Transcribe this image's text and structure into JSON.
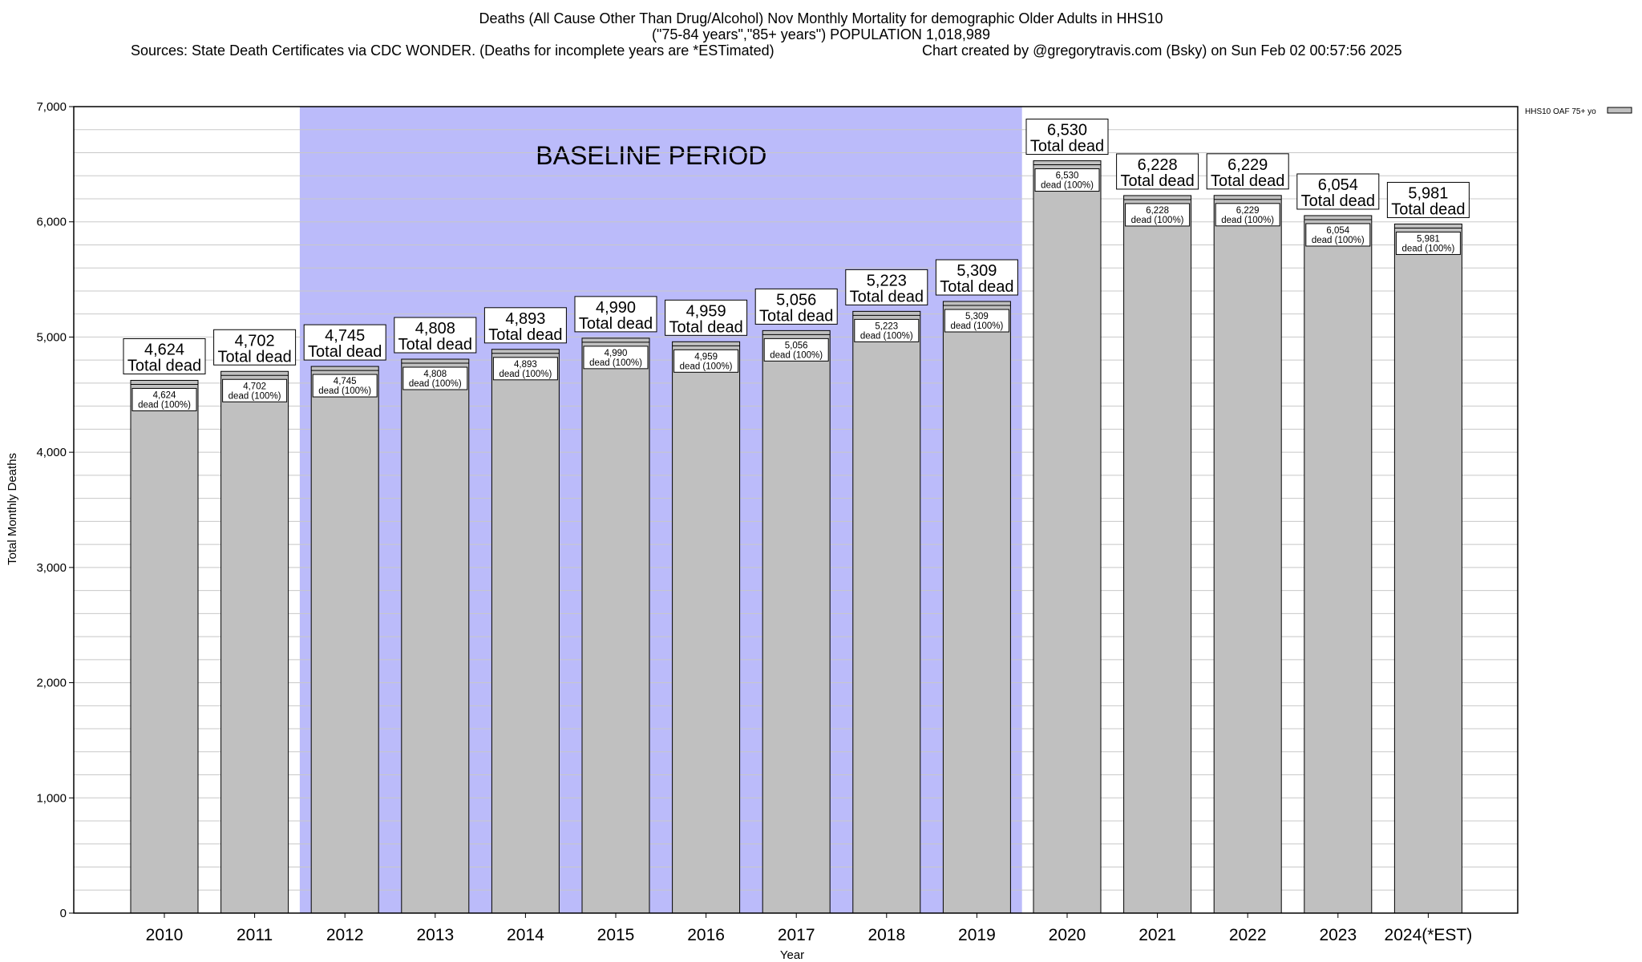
{
  "header": {
    "line1": "Deaths (All Cause Other Than Drug/Alcohol) Nov Monthly Mortality for demographic Older Adults in HHS10",
    "line2": "(\"75-84 years\",\"85+ years\") POPULATION 1,018,989",
    "line3_source": "Sources: State Death Certificates via CDC WONDER. (Deaths for incomplete years are *ESTimated)",
    "line3_credit": "Chart created by @gregorytravis.com (Bsky) on Sun Feb 02 00:57:56 2025"
  },
  "chart_data": {
    "type": "bar",
    "title": "Deaths (All Cause Other Than Drug/Alcohol) Nov Monthly Mortality for demographic Older Adults in HHS10",
    "categories": [
      "2010",
      "2011",
      "2012",
      "2013",
      "2014",
      "2015",
      "2016",
      "2017",
      "2018",
      "2019",
      "2020",
      "2021",
      "2022",
      "2023",
      "2024(*EST)"
    ],
    "series": [
      {
        "name": "HHS10 OAF 75+ yo",
        "values": [
          4624,
          4702,
          4745,
          4808,
          4893,
          4990,
          4959,
          5056,
          5223,
          5309,
          6530,
          6228,
          6229,
          6054,
          5981
        ]
      }
    ],
    "top_labels": [
      "4,624",
      "4,702",
      "4,745",
      "4,808",
      "4,893",
      "4,990",
      "4,959",
      "5,056",
      "5,223",
      "5,309",
      "6,530",
      "6,228",
      "6,229",
      "6,054",
      "5,981"
    ],
    "top_label_suffix": "Total dead",
    "inner_label_suffix": "dead (100%)",
    "xlabel": "Year",
    "ylabel": "Total Monthly Deaths",
    "ylim": [
      0,
      7000
    ],
    "yticks": [
      0,
      1000,
      2000,
      3000,
      4000,
      5000,
      6000,
      7000
    ],
    "ytick_labels": [
      "0",
      "1,000",
      "2,000",
      "3,000",
      "4,000",
      "5,000",
      "6,000",
      "7,000"
    ],
    "grid": true,
    "minor_grid_step": 200,
    "legend_position": "top-right",
    "baseline_region": {
      "label": "BASELINE PERIOD",
      "from_category": "2012",
      "to_category": "2019"
    },
    "colors": {
      "bar": "#c0c0c0",
      "baseline": "#bbbbfa",
      "grid": "#c8c8c8",
      "frame": "#000000"
    }
  }
}
